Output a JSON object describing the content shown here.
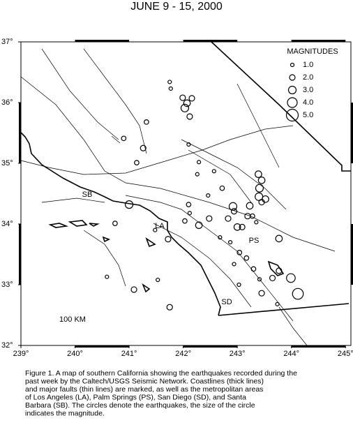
{
  "chart_data": {
    "type": "scatter",
    "title": "JUNE 9 - 15, 2000",
    "xlim": [
      239,
      245.1
    ],
    "ylim": [
      32,
      37
    ],
    "xticks": [
      {
        "value": 239,
        "label": "239°"
      },
      {
        "value": 240,
        "label": "240°"
      },
      {
        "value": 241,
        "label": "241°"
      },
      {
        "value": 242,
        "label": "242°"
      },
      {
        "value": 243,
        "label": "243°"
      },
      {
        "value": 244,
        "label": "244°"
      },
      {
        "value": 245,
        "label": "245°"
      }
    ],
    "yticks": [
      {
        "value": 32,
        "label": "32°"
      },
      {
        "value": 33,
        "label": "33°"
      },
      {
        "value": 34,
        "label": "34°"
      },
      {
        "value": 35,
        "label": "35°"
      },
      {
        "value": 36,
        "label": "36°"
      },
      {
        "value": 37,
        "label": "37°"
      }
    ],
    "x": [
      241.75,
      241.77,
      241.99,
      242.07,
      242.03,
      242.16,
      242.12,
      241.32,
      240.9,
      241.26,
      241.14,
      242.1,
      242.29,
      242.57,
      242.72,
      242.92,
      243.39,
      243.41,
      243.4,
      243.45,
      243.23,
      243.19,
      242.83,
      243.0,
      243.09,
      242.94,
      242.48,
      242.29,
      242.1,
      242.03,
      242.12,
      241.0,
      240.74,
      241.48,
      242.68,
      242.87,
      243.04,
      243.17,
      242.94,
      243.3,
      243.41,
      243.65,
      243.99,
      244.12,
      243.45,
      243.74,
      243.77,
      243.77,
      243.28,
      243.35,
      242.46,
      242.26,
      241.72,
      241.09,
      241.75,
      240.59,
      241.53,
      243.03,
      243.45,
      243.52
    ],
    "values": [
      36.34,
      36.23,
      36.08,
      35.99,
      35.91,
      36.07,
      35.77,
      35.68,
      35.41,
      35.25,
      35.01,
      35.31,
      35.02,
      34.87,
      34.59,
      34.29,
      34.82,
      34.59,
      34.45,
      34.36,
      34.3,
      34.13,
      34.09,
      33.95,
      33.95,
      34.21,
      34.09,
      33.98,
      34.32,
      34.05,
      34.18,
      34.32,
      34.01,
      33.9,
      33.78,
      33.7,
      33.53,
      33.44,
      33.34,
      33.26,
      33.09,
      33.11,
      33.11,
      32.85,
      32.86,
      32.68,
      33.23,
      33.76,
      34.13,
      34.03,
      34.47,
      34.82,
      33.75,
      32.92,
      32.63,
      33.13,
      33.08,
      33.0,
      34.72,
      34.41
    ],
    "magnitudes": [
      1,
      1,
      2,
      2.5,
      3,
      2,
      2,
      1.5,
      1.5,
      2,
      1.5,
      1,
      1,
      1,
      1.5,
      3,
      2.5,
      3,
      3,
      2,
      2.5,
      2,
      2,
      2.5,
      2,
      2,
      2,
      2.5,
      1.5,
      1.5,
      1,
      3,
      1.5,
      1,
      1,
      1,
      1.5,
      1.5,
      1,
      1.5,
      1,
      2,
      3.5,
      4.5,
      2,
      1,
      2,
      2.5,
      1.5,
      1,
      1,
      1,
      2,
      2,
      2,
      1,
      1,
      1,
      2.5,
      2.5
    ],
    "size_legend": {
      "title": "MAGNITUDES",
      "values": [
        {
          "value": 1,
          "label": "1.0"
        },
        {
          "value": 2,
          "label": "2.0"
        },
        {
          "value": 3,
          "label": "3.0"
        },
        {
          "value": 4,
          "label": "4.0"
        },
        {
          "value": 5,
          "label": "5.0"
        }
      ]
    },
    "place_labels": [
      "SB",
      "LA",
      "PS",
      "SD"
    ],
    "scale_label": "100 KM",
    "caption": [
      "Figure 1. A map of southern California showing the earthquakes recorded during the",
      "past week by the Caltech/USGS Seismic Network.  Coastlines (thick lines)",
      "and major faults (thin lines) are marked, as well as the metropolitan areas",
      "of Los Angeles (LA), Palm Springs (PS), San Diego (SD), and Santa",
      "Barbara (SB).  The circles denote the earthquakes, the size of the circle",
      "indicates the magnitude."
    ]
  }
}
